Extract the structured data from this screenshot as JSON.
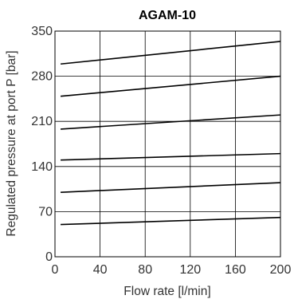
{
  "chart_data": {
    "type": "line",
    "title": "AGAM-10",
    "xlabel": "Flow rate [l/min]",
    "ylabel": "Regulated pressure at port P [bar]",
    "xlim": [
      0,
      200
    ],
    "ylim": [
      0,
      350
    ],
    "xticks": [
      "0",
      "40",
      "80",
      "120",
      "160",
      "200"
    ],
    "yticks": [
      "0",
      "70",
      "140",
      "210",
      "280",
      "350"
    ],
    "grid": true,
    "series": [
      {
        "x": [
          5,
          200
        ],
        "values": [
          50,
          61
        ]
      },
      {
        "x": [
          5,
          200
        ],
        "values": [
          100,
          115
        ]
      },
      {
        "x": [
          5,
          200
        ],
        "values": [
          150,
          160
        ]
      },
      {
        "x": [
          5,
          200
        ],
        "values": [
          198,
          220
        ]
      },
      {
        "x": [
          5,
          200
        ],
        "values": [
          249,
          280
        ]
      },
      {
        "x": [
          5,
          200
        ],
        "values": [
          299,
          334
        ]
      }
    ]
  }
}
